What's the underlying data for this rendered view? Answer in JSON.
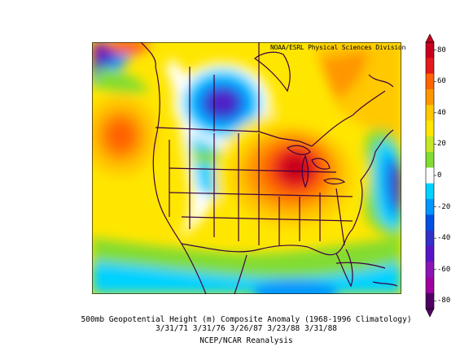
{
  "credit": "NOAA/ESRL Physical Sciences Division",
  "caption": {
    "line1": "500mb Geopotential Height (m) Composite Anomaly (1968-1996 Climatology)",
    "line2": "3/31/71 3/31/76 3/26/87 3/23/88 3/31/88",
    "line3": "NCEP/NCAR Reanalysis"
  },
  "colorbar": {
    "ticks": [
      "80",
      "60",
      "40",
      "20",
      "0",
      "-20",
      "-40",
      "-60",
      "-80"
    ],
    "colors": {
      "80": "#c8001e",
      "70": "#e41a1c",
      "60": "#ff6400",
      "50": "#ff9600",
      "40": "#ffc800",
      "30": "#ffe600",
      "20": "#c8e628",
      "10": "#82dc32",
      "0": "#ffffff",
      "-10": "#00d2ff",
      "-20": "#0096ff",
      "-30": "#0050e6",
      "-40": "#3232c8",
      "-50": "#5a14c8",
      "-60": "#8c14b4",
      "-70": "#a000a0",
      "-80": "#500064"
    }
  }
}
